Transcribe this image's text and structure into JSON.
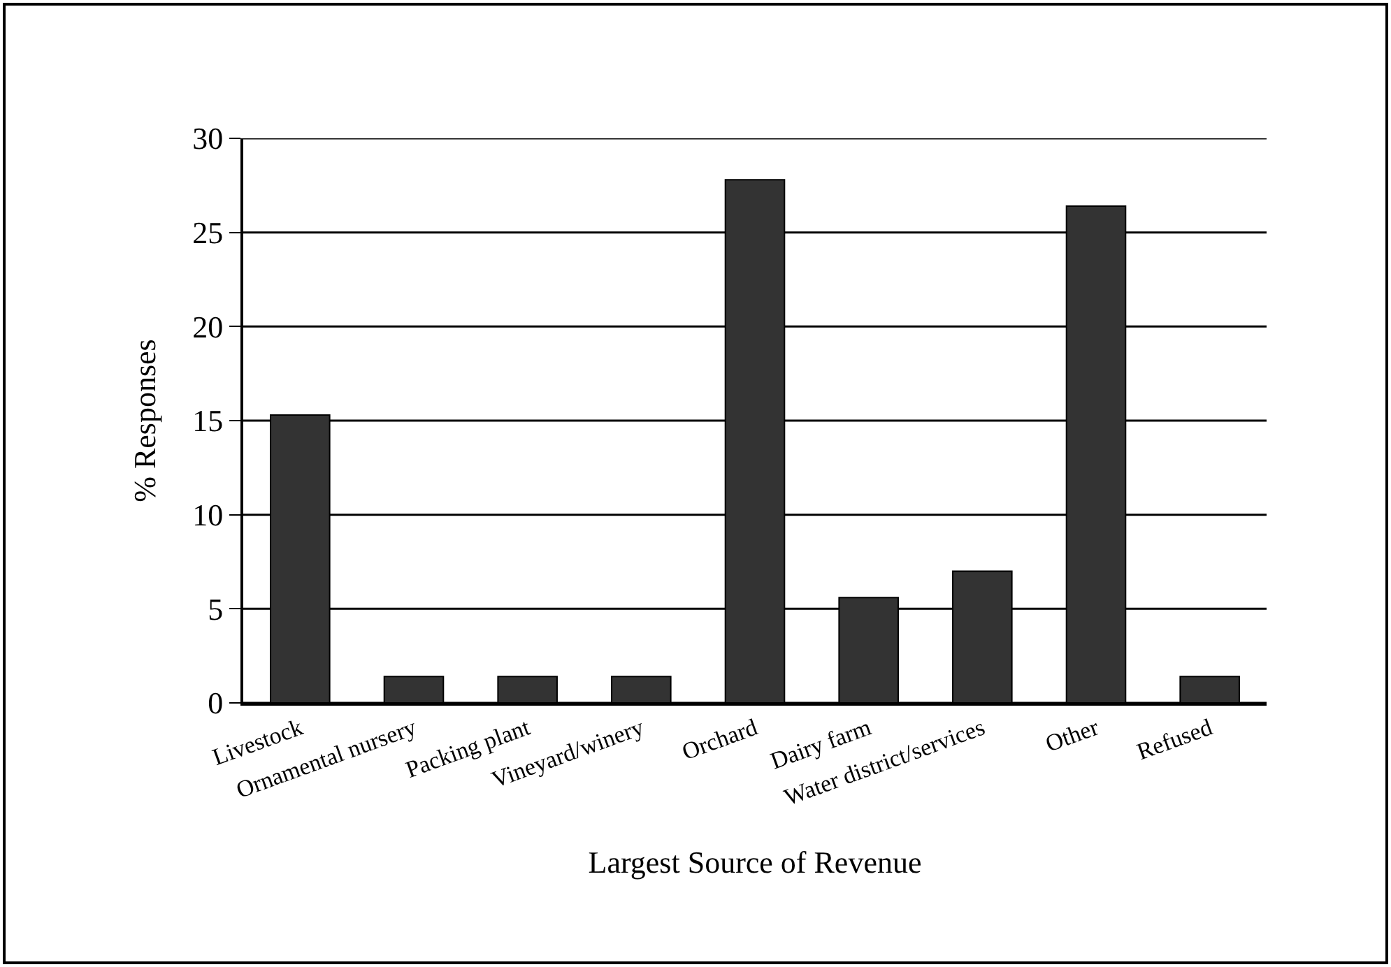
{
  "chart_data": {
    "type": "bar",
    "xlabel": "Largest Source of Revenue",
    "ylabel": "% Responses",
    "categories": [
      "Livestock",
      "Ornamental nursery",
      "Packing plant",
      "Vineyard/winery",
      "Orchard",
      "Dairy farm",
      "Water district/services",
      "Other",
      "Refused"
    ],
    "values": [
      15.3,
      1.4,
      1.4,
      1.4,
      27.8,
      5.6,
      7.0,
      26.4,
      1.4
    ],
    "color": "#333333",
    "ylim": [
      0,
      30
    ],
    "yticks": [
      0,
      5,
      10,
      15,
      20,
      25,
      30
    ],
    "grid": "y"
  }
}
